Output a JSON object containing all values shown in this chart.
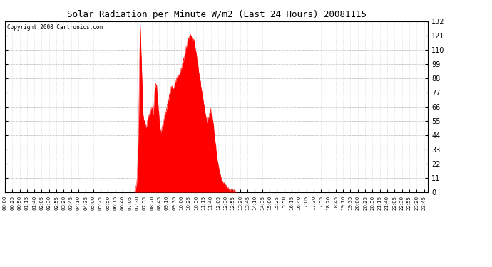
{
  "title": "Solar Radiation per Minute W/m2 (Last 24 Hours) 20081115",
  "copyright": "Copyright 2008 Cartronics.com",
  "fill_color": "#ff0000",
  "background_color": "#ffffff",
  "grid_color": "#888888",
  "dashed_line_color": "#ff0000",
  "yticks": [
    0.0,
    11.0,
    22.0,
    33.0,
    44.0,
    55.0,
    66.0,
    77.0,
    88.0,
    99.0,
    110.0,
    121.0,
    132.0
  ],
  "ylim": [
    0.0,
    132.0
  ],
  "num_points": 1440,
  "profile_points": [
    [
      0,
      0
    ],
    [
      440,
      0
    ],
    [
      445,
      2
    ],
    [
      450,
      10
    ],
    [
      455,
      55
    ],
    [
      460,
      130
    ],
    [
      465,
      95
    ],
    [
      470,
      60
    ],
    [
      475,
      55
    ],
    [
      480,
      50
    ],
    [
      485,
      55
    ],
    [
      490,
      58
    ],
    [
      495,
      62
    ],
    [
      500,
      65
    ],
    [
      505,
      60
    ],
    [
      510,
      80
    ],
    [
      515,
      85
    ],
    [
      520,
      70
    ],
    [
      525,
      55
    ],
    [
      530,
      45
    ],
    [
      535,
      50
    ],
    [
      540,
      55
    ],
    [
      545,
      60
    ],
    [
      550,
      65
    ],
    [
      555,
      70
    ],
    [
      560,
      75
    ],
    [
      565,
      80
    ],
    [
      570,
      82
    ],
    [
      575,
      80
    ],
    [
      580,
      85
    ],
    [
      585,
      88
    ],
    [
      590,
      90
    ],
    [
      595,
      92
    ],
    [
      600,
      95
    ],
    [
      605,
      100
    ],
    [
      610,
      105
    ],
    [
      615,
      110
    ],
    [
      620,
      115
    ],
    [
      625,
      120
    ],
    [
      630,
      122
    ],
    [
      635,
      120
    ],
    [
      640,
      118
    ],
    [
      645,
      115
    ],
    [
      650,
      108
    ],
    [
      655,
      100
    ],
    [
      660,
      92
    ],
    [
      665,
      85
    ],
    [
      670,
      78
    ],
    [
      675,
      70
    ],
    [
      680,
      62
    ],
    [
      685,
      57
    ],
    [
      690,
      55
    ],
    [
      695,
      60
    ],
    [
      700,
      62
    ],
    [
      705,
      58
    ],
    [
      710,
      50
    ],
    [
      715,
      40
    ],
    [
      720,
      30
    ],
    [
      725,
      22
    ],
    [
      730,
      15
    ],
    [
      735,
      11
    ],
    [
      740,
      8
    ],
    [
      750,
      5
    ],
    [
      760,
      3
    ],
    [
      770,
      2
    ],
    [
      780,
      1
    ],
    [
      790,
      0
    ],
    [
      1439,
      0
    ]
  ],
  "xtick_step": 25,
  "xlabel_step": 1
}
